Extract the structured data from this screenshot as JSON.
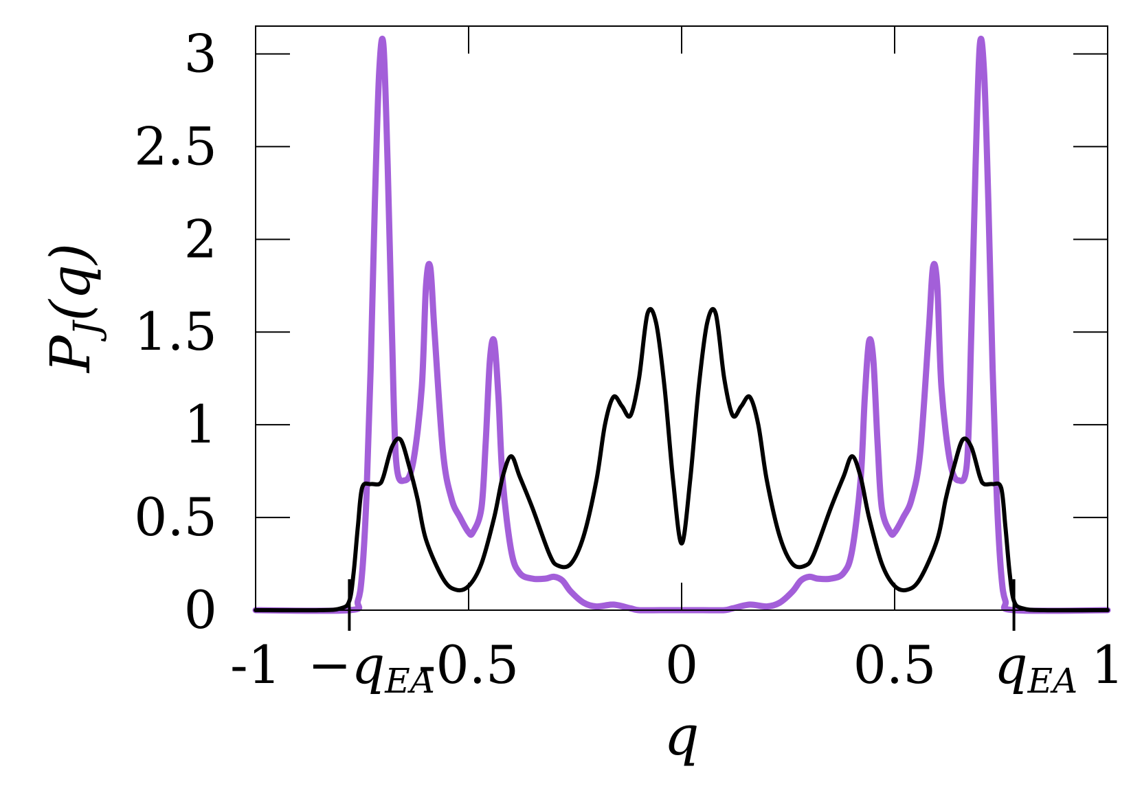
{
  "chart_data": {
    "type": "line",
    "title": "",
    "xlabel": "q",
    "ylabel": {
      "main": "P",
      "sub": "J",
      "arg": "(q)"
    },
    "xlim": [
      -1,
      1
    ],
    "ylim": [
      0,
      3.15
    ],
    "grid": false,
    "x_ticks": [
      {
        "value": -1,
        "label": "-1"
      },
      {
        "value": -0.5,
        "label": "-0.5"
      },
      {
        "value": 0,
        "label": "0"
      },
      {
        "value": 0.5,
        "label": "0.5"
      },
      {
        "value": 1,
        "label": "1"
      }
    ],
    "y_ticks": [
      {
        "value": 0,
        "label": "0"
      },
      {
        "value": 0.5,
        "label": "0.5"
      },
      {
        "value": 1,
        "label": "1"
      },
      {
        "value": 1.5,
        "label": "1.5"
      },
      {
        "value": 2,
        "label": "2"
      },
      {
        "value": 2.5,
        "label": "2.5"
      },
      {
        "value": 3,
        "label": "3"
      }
    ],
    "annotations": [
      {
        "x": -0.78,
        "prefix": "−",
        "main": "q",
        "sub": "EA"
      },
      {
        "x": 0.78,
        "prefix": "",
        "main": "q",
        "sub": "EA"
      }
    ],
    "series": [
      {
        "color": "#a35fd9",
        "symmetric": true,
        "points": [
          [
            0,
            0
          ],
          [
            0.05,
            0
          ],
          [
            0.1,
            0
          ],
          [
            0.12,
            0.01
          ],
          [
            0.16,
            0.03
          ],
          [
            0.2,
            0.02
          ],
          [
            0.23,
            0.04
          ],
          [
            0.26,
            0.1
          ],
          [
            0.28,
            0.16
          ],
          [
            0.3,
            0.18
          ],
          [
            0.32,
            0.17
          ],
          [
            0.35,
            0.17
          ],
          [
            0.38,
            0.2
          ],
          [
            0.4,
            0.32
          ],
          [
            0.42,
            0.7
          ],
          [
            0.43,
            1.15
          ],
          [
            0.44,
            1.45
          ],
          [
            0.45,
            1.35
          ],
          [
            0.46,
            0.9
          ],
          [
            0.47,
            0.55
          ],
          [
            0.49,
            0.42
          ],
          [
            0.5,
            0.42
          ],
          [
            0.52,
            0.5
          ],
          [
            0.54,
            0.6
          ],
          [
            0.56,
            0.85
          ],
          [
            0.58,
            1.5
          ],
          [
            0.59,
            1.85
          ],
          [
            0.6,
            1.75
          ],
          [
            0.61,
            1.2
          ],
          [
            0.63,
            0.8
          ],
          [
            0.65,
            0.7
          ],
          [
            0.67,
            0.8
          ],
          [
            0.68,
            1.5
          ],
          [
            0.69,
            2.4
          ],
          [
            0.7,
            3.05
          ],
          [
            0.71,
            2.9
          ],
          [
            0.72,
            2.2
          ],
          [
            0.73,
            1.3
          ],
          [
            0.74,
            0.6
          ],
          [
            0.75,
            0.2
          ],
          [
            0.76,
            0.05
          ],
          [
            0.78,
            0
          ],
          [
            1,
            0
          ]
        ]
      },
      {
        "color": "#000000",
        "symmetric": true,
        "points": [
          [
            0,
            0.36
          ],
          [
            0.02,
            0.7
          ],
          [
            0.04,
            1.2
          ],
          [
            0.06,
            1.55
          ],
          [
            0.08,
            1.6
          ],
          [
            0.1,
            1.25
          ],
          [
            0.12,
            1.05
          ],
          [
            0.14,
            1.1
          ],
          [
            0.16,
            1.15
          ],
          [
            0.18,
            1.0
          ],
          [
            0.2,
            0.7
          ],
          [
            0.23,
            0.4
          ],
          [
            0.26,
            0.25
          ],
          [
            0.29,
            0.24
          ],
          [
            0.31,
            0.3
          ],
          [
            0.35,
            0.55
          ],
          [
            0.38,
            0.72
          ],
          [
            0.4,
            0.83
          ],
          [
            0.42,
            0.72
          ],
          [
            0.44,
            0.5
          ],
          [
            0.47,
            0.25
          ],
          [
            0.5,
            0.13
          ],
          [
            0.53,
            0.11
          ],
          [
            0.56,
            0.17
          ],
          [
            0.6,
            0.38
          ],
          [
            0.62,
            0.6
          ],
          [
            0.64,
            0.78
          ],
          [
            0.66,
            0.92
          ],
          [
            0.68,
            0.88
          ],
          [
            0.7,
            0.72
          ],
          [
            0.71,
            0.68
          ],
          [
            0.73,
            0.68
          ],
          [
            0.75,
            0.66
          ],
          [
            0.76,
            0.45
          ],
          [
            0.77,
            0.2
          ],
          [
            0.78,
            0.05
          ],
          [
            0.8,
            0.01
          ],
          [
            0.85,
            0
          ],
          [
            1,
            0
          ]
        ]
      }
    ]
  }
}
